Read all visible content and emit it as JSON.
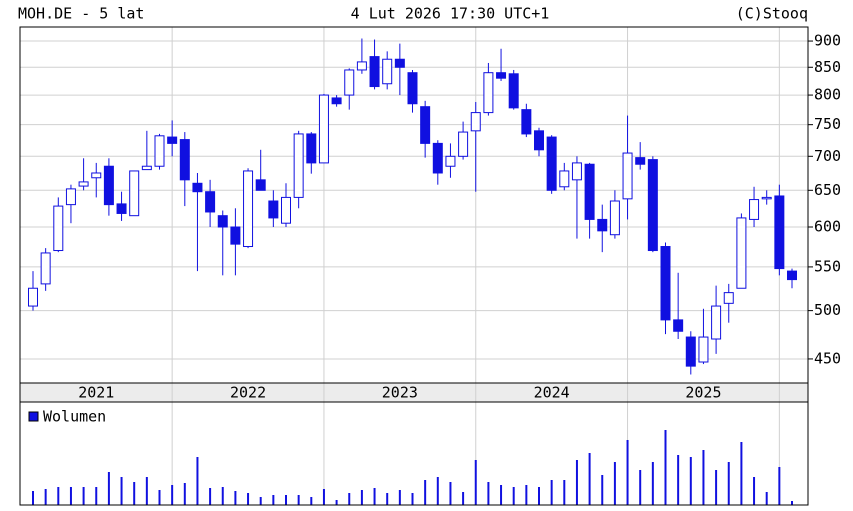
{
  "header": {
    "left": "MOH.DE - 5 lat",
    "center": "4 Lut 2026 17:30 UTC+1",
    "right": "(C)Stooq"
  },
  "chart_data": {
    "type": "candlestick",
    "color": "#1010e0",
    "log_scale": true,
    "grid": true,
    "ylim": [
      427,
      928
    ],
    "yticks": [
      450,
      500,
      550,
      600,
      650,
      700,
      750,
      800,
      850,
      900
    ],
    "years": [
      "2021",
      "2022",
      "2023",
      "2024",
      "2025"
    ],
    "open": [
      505,
      530,
      570,
      630,
      656,
      668,
      685,
      631,
      615,
      680,
      685,
      730,
      726,
      660,
      648,
      615,
      600,
      575,
      665,
      635,
      605,
      640,
      735,
      690,
      795,
      800,
      845,
      870,
      820,
      865,
      840,
      780,
      720,
      685,
      700,
      740,
      770,
      840,
      838,
      775,
      740,
      730,
      655,
      665,
      688,
      610,
      590,
      638,
      698,
      695,
      575,
      490,
      472,
      447,
      470,
      508,
      525,
      610,
      638,
      642,
      545
    ],
    "high": [
      545,
      573,
      640,
      658,
      697,
      690,
      697,
      648,
      678,
      740,
      735,
      757,
      738,
      675,
      665,
      622,
      625,
      682,
      710,
      650,
      660,
      740,
      738,
      802,
      800,
      848,
      905,
      903,
      880,
      895,
      845,
      790,
      725,
      720,
      755,
      788,
      858,
      885,
      845,
      785,
      745,
      733,
      690,
      700,
      690,
      630,
      650,
      765,
      722,
      700,
      580,
      543,
      478,
      502,
      528,
      530,
      618,
      655,
      650,
      658,
      548
    ],
    "low": [
      500,
      522,
      568,
      605,
      650,
      640,
      615,
      608,
      615,
      680,
      680,
      700,
      628,
      545,
      600,
      540,
      540,
      573,
      650,
      600,
      600,
      625,
      674,
      690,
      780,
      775,
      838,
      810,
      810,
      800,
      770,
      698,
      658,
      668,
      695,
      648,
      765,
      825,
      775,
      730,
      700,
      645,
      650,
      585,
      585,
      568,
      585,
      610,
      680,
      568,
      475,
      470,
      435,
      445,
      455,
      487,
      525,
      600,
      630,
      540,
      525
    ],
    "close": [
      525,
      567,
      628,
      652,
      662,
      675,
      630,
      618,
      678,
      685,
      732,
      720,
      665,
      648,
      620,
      600,
      578,
      678,
      650,
      612,
      640,
      735,
      690,
      800,
      785,
      845,
      860,
      815,
      865,
      850,
      785,
      720,
      675,
      700,
      738,
      770,
      840,
      830,
      778,
      735,
      710,
      650,
      678,
      690,
      610,
      595,
      635,
      705,
      688,
      570,
      490,
      478,
      443,
      472,
      505,
      520,
      612,
      637,
      640,
      548,
      535
    ],
    "volume_legend": "Wolumen",
    "volume_ylim": [
      0,
      100
    ],
    "volume": [
      14,
      16,
      18,
      18,
      18,
      18,
      33,
      28,
      23,
      28,
      15,
      20,
      22,
      48,
      17,
      18,
      14,
      12,
      8,
      10,
      10,
      10,
      8,
      16,
      5,
      12,
      15,
      17,
      12,
      15,
      12,
      25,
      28,
      23,
      13,
      45,
      23,
      20,
      18,
      20,
      18,
      25,
      25,
      45,
      52,
      30,
      43,
      65,
      35,
      43,
      75,
      50,
      48,
      55,
      35,
      43,
      63,
      28,
      13,
      38,
      4
    ]
  }
}
